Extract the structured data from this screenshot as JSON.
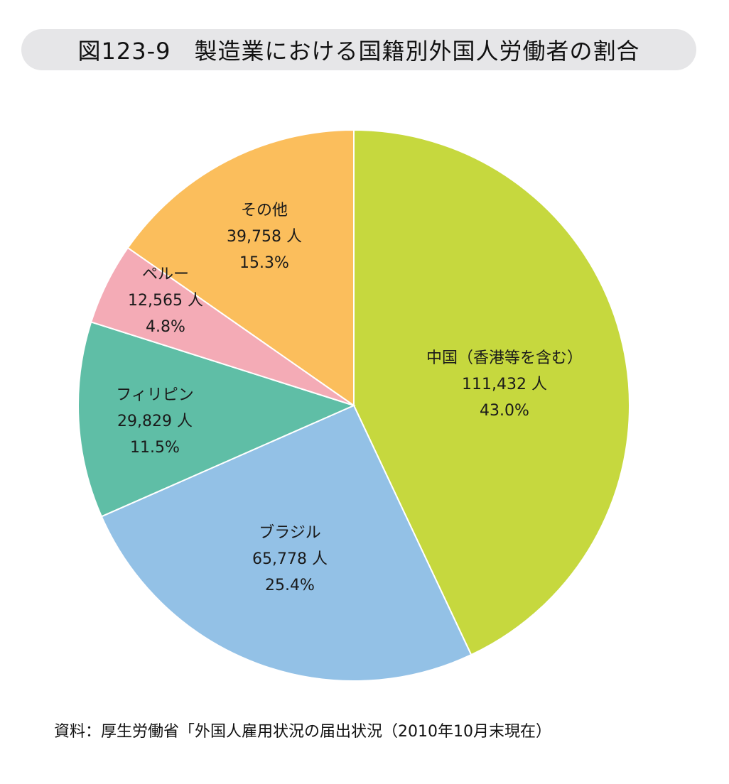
{
  "chart_data": {
    "type": "pie",
    "title": "図123-9　製造業における国籍別外国人労働者の割合",
    "source": "資料：厚生労働省「外国人雇用状況の届出状況（2010年10月末現在）",
    "start": "12 o'clock, clockwise",
    "slices": [
      {
        "label": "中国（香港等を含む）",
        "count": "111,432 人",
        "percent_label": "43.0%",
        "value": 43.0,
        "color": "#c6d83e"
      },
      {
        "label": "ブラジル",
        "count": "65,778 人",
        "percent_label": "25.4%",
        "value": 25.4,
        "color": "#93c1e6"
      },
      {
        "label": "フィリピン",
        "count": "29,829 人",
        "percent_label": "11.5%",
        "value": 11.5,
        "color": "#5fbea6"
      },
      {
        "label": "ペルー",
        "count": "12,565 人",
        "percent_label": "4.8%",
        "value": 4.8,
        "color": "#f4abb6"
      },
      {
        "label": "その他",
        "count": "39,758 人",
        "percent_label": "15.3%",
        "value": 15.3,
        "color": "#fbbe5c"
      }
    ]
  }
}
